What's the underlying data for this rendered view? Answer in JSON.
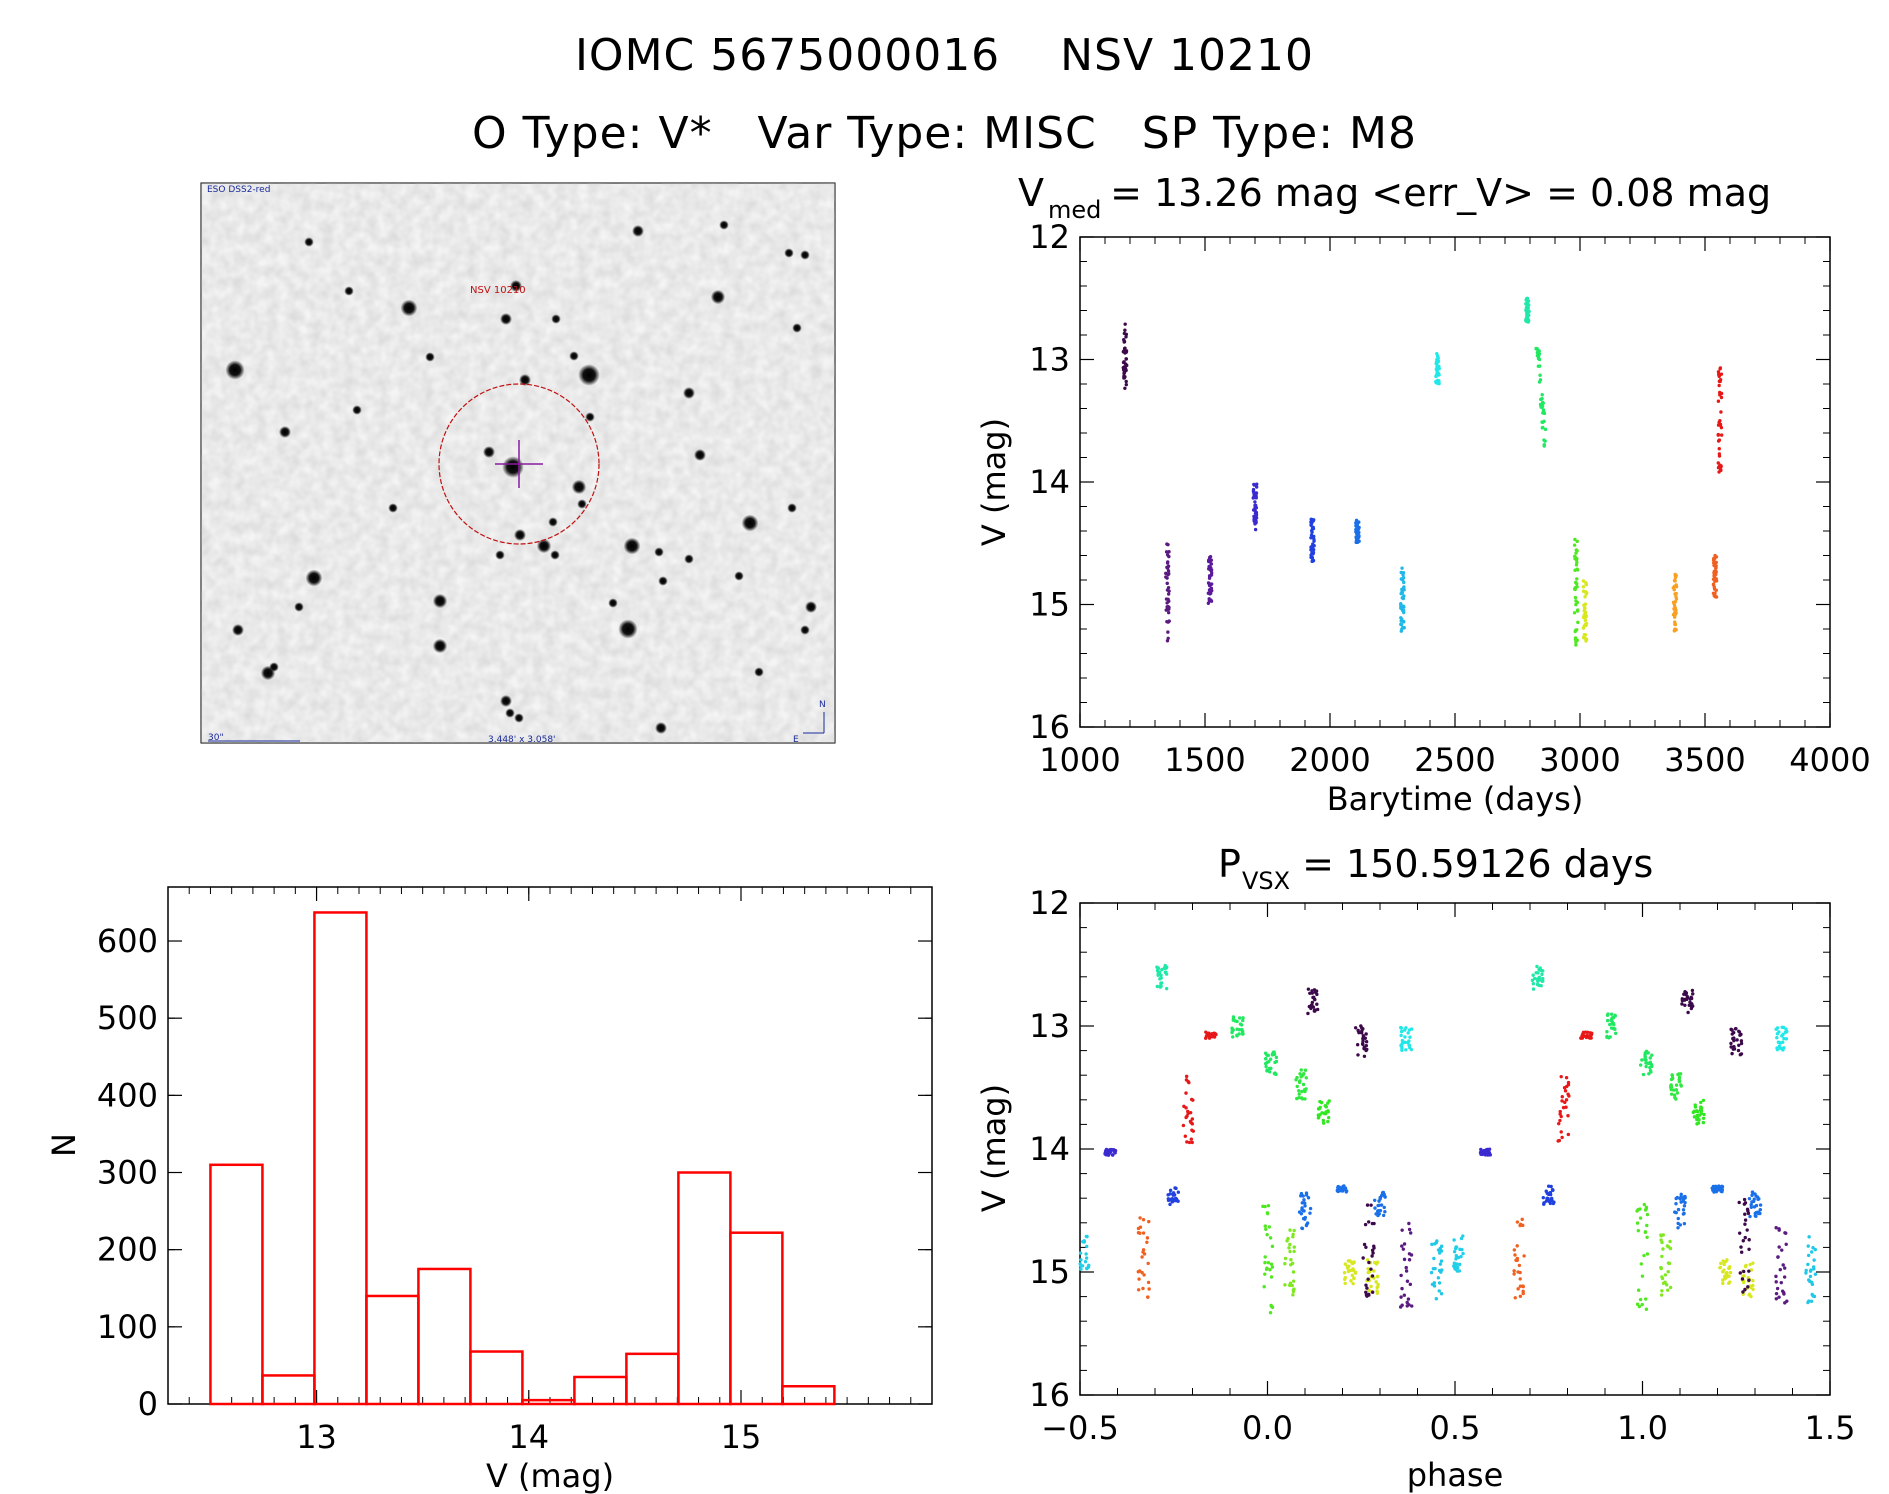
{
  "title": "IOMC 5675000016    NSV 10210",
  "subtitle": "O Type: V*   Var Type: MISC   SP Type: M8",
  "finder": {
    "survey_label": "ESO DSS2-red",
    "target_label": "NSV 10210",
    "scale_label": "30\"",
    "fov_label": "3.448' x 3.058'",
    "north_label": "N",
    "east_label": "E"
  },
  "chart_data": [
    {
      "type": "scatter",
      "id": "lightcurve",
      "title_main": "V",
      "title_sub": "med",
      "title_rest": " = 13.26 mag <err_V> = 0.08 mag",
      "xlabel": "Barytime (days)",
      "ylabel": "V (mag)",
      "xlim": [
        1000,
        4000
      ],
      "ylim": [
        16,
        12
      ],
      "y_inverted": true,
      "xticks": [
        "1000",
        "1500",
        "2000",
        "2500",
        "3000",
        "3500",
        "4000"
      ],
      "yticks": [
        "12",
        "13",
        "14",
        "15",
        "16"
      ],
      "segments": [
        {
          "t": 1180,
          "v_min": 12.7,
          "v_max": 13.25,
          "color": "#3c0a4a"
        },
        {
          "t": 1350,
          "v_min": 14.5,
          "v_max": 15.3,
          "color": "#5a1a80"
        },
        {
          "t": 1520,
          "v_min": 14.6,
          "v_max": 15.0,
          "color": "#5a1a9a"
        },
        {
          "t": 1700,
          "v_min": 14.0,
          "v_max": 14.4,
          "color": "#3a2ad0"
        },
        {
          "t": 1930,
          "v_min": 14.3,
          "v_max": 14.65,
          "color": "#2040e0"
        },
        {
          "t": 2110,
          "v_min": 14.3,
          "v_max": 14.5,
          "color": "#1a70e8"
        },
        {
          "t": 2290,
          "v_min": 14.7,
          "v_max": 15.25,
          "color": "#20b8e8"
        },
        {
          "t": 2430,
          "v_min": 12.95,
          "v_max": 13.2,
          "color": "#20e8e8"
        },
        {
          "t": 2790,
          "v_min": 12.5,
          "v_max": 12.7,
          "color": "#20e8a8"
        },
        {
          "t": 2830,
          "v_min": 12.9,
          "v_max": 13.8,
          "color": "#20e860"
        },
        {
          "t": 2985,
          "v_min": 14.45,
          "v_max": 15.35,
          "color": "#50e820"
        },
        {
          "t": 3020,
          "v_min": 14.8,
          "v_max": 15.3,
          "color": "#d8e820"
        },
        {
          "t": 3380,
          "v_min": 14.75,
          "v_max": 15.25,
          "color": "#f8a020"
        },
        {
          "t": 3540,
          "v_min": 14.6,
          "v_max": 14.95,
          "color": "#f06020"
        },
        {
          "t": 3560,
          "v_min": 13.05,
          "v_max": 13.95,
          "color": "#e81818"
        }
      ]
    },
    {
      "type": "bar",
      "id": "histogram",
      "xlabel": "V (mag)",
      "ylabel": "N",
      "xlim": [
        12.3,
        15.9
      ],
      "ylim": [
        0,
        670
      ],
      "xticks": [
        "13",
        "14",
        "15"
      ],
      "yticks": [
        "0",
        "100",
        "200",
        "300",
        "400",
        "500",
        "600"
      ],
      "bin_width": 0.245,
      "bin_start": 12.5,
      "values": [
        310,
        37,
        637,
        140,
        175,
        68,
        5,
        35,
        65,
        300,
        222,
        23
      ],
      "color": "#ff0000"
    },
    {
      "type": "scatter",
      "id": "phased",
      "title_main": "P",
      "title_sub": "VSX",
      "title_rest": " = 150.59126 days",
      "xlabel": "phase",
      "ylabel": "V (mag)",
      "xlim": [
        -0.5,
        1.5
      ],
      "ylim": [
        16,
        12
      ],
      "y_inverted": true,
      "xticks": [
        "−0.5",
        "0.0",
        "0.5",
        "1.0",
        "1.5"
      ],
      "yticks": [
        "12",
        "13",
        "14",
        "15",
        "16"
      ],
      "segments": [
        {
          "p": -0.49,
          "v_min": 14.7,
          "v_max": 15.0,
          "color": "#20d0e8"
        },
        {
          "p": -0.33,
          "v_min": 14.55,
          "v_max": 15.25,
          "color": "#f06020"
        },
        {
          "p": -0.42,
          "v_min": 14.0,
          "v_max": 14.05,
          "color": "#3a2ad0"
        },
        {
          "p": -0.25,
          "v_min": 14.3,
          "v_max": 14.45,
          "color": "#2040e0"
        },
        {
          "p": -0.21,
          "v_min": 13.4,
          "v_max": 13.95,
          "color": "#e81818"
        },
        {
          "p": -0.15,
          "v_min": 13.05,
          "v_max": 13.1,
          "color": "#e81818"
        },
        {
          "p": -0.28,
          "v_min": 12.5,
          "v_max": 12.7,
          "color": "#20e8a8"
        },
        {
          "p": -0.08,
          "v_min": 12.9,
          "v_max": 13.1,
          "color": "#20e860"
        },
        {
          "p": 0.01,
          "v_min": 13.2,
          "v_max": 13.4,
          "color": "#20e860"
        },
        {
          "p": 0.09,
          "v_min": 13.35,
          "v_max": 13.6,
          "color": "#30e840"
        },
        {
          "p": 0.15,
          "v_min": 13.6,
          "v_max": 13.8,
          "color": "#30e820"
        },
        {
          "p": 0.0,
          "v_min": 14.45,
          "v_max": 15.35,
          "color": "#50e820"
        },
        {
          "p": 0.06,
          "v_min": 14.65,
          "v_max": 15.2,
          "color": "#80e820"
        },
        {
          "p": 0.1,
          "v_min": 14.35,
          "v_max": 14.65,
          "color": "#1a70e8"
        },
        {
          "p": 0.12,
          "v_min": 12.7,
          "v_max": 12.9,
          "color": "#3c0a4a"
        },
        {
          "p": 0.2,
          "v_min": 14.3,
          "v_max": 14.35,
          "color": "#1a70e8"
        },
        {
          "p": 0.22,
          "v_min": 14.9,
          "v_max": 15.1,
          "color": "#d8e820"
        },
        {
          "p": 0.25,
          "v_min": 13.0,
          "v_max": 13.25,
          "color": "#3c0a4a"
        },
        {
          "p": 0.28,
          "v_min": 14.9,
          "v_max": 15.2,
          "color": "#d8e820"
        },
        {
          "p": 0.3,
          "v_min": 14.35,
          "v_max": 14.55,
          "color": "#1a70e8"
        },
        {
          "p": 0.37,
          "v_min": 13.0,
          "v_max": 13.2,
          "color": "#20e8e8"
        },
        {
          "p": 0.37,
          "v_min": 14.6,
          "v_max": 15.3,
          "color": "#5a1a80"
        },
        {
          "p": 0.45,
          "v_min": 14.7,
          "v_max": 15.25,
          "color": "#20c8e8"
        },
        {
          "p": 0.27,
          "v_min": 14.4,
          "v_max": 15.2,
          "color": "#3c0a4a"
        }
      ]
    }
  ]
}
